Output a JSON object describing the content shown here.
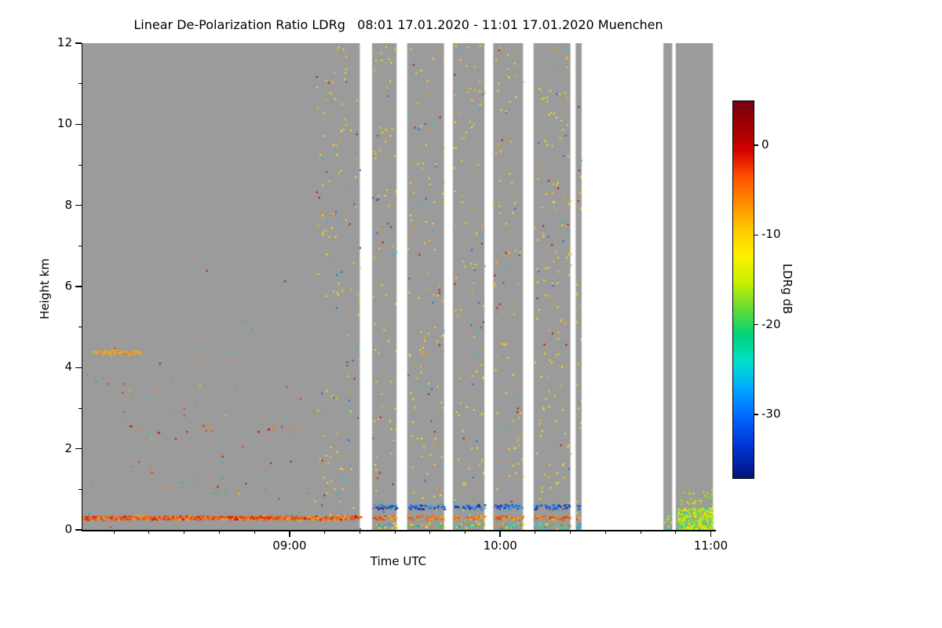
{
  "chart_data": {
    "type": "heatmap",
    "title": "Linear De-Polarization Ratio LDRg   08:01 17.01.2020 - 11:01 17.01.2020 Muenchen",
    "xlabel": "Time UTC",
    "ylabel": "Height km",
    "station": "Muenchen",
    "time_start": "08:01 17.01.2020",
    "time_end": "11:01 17.01.2020",
    "x_total_minutes": 180,
    "x_ticks": [
      {
        "label": "09:00",
        "minute": 59
      },
      {
        "label": "10:00",
        "minute": 119
      },
      {
        "label": "11:00",
        "minute": 179
      }
    ],
    "x_minor_start": 9,
    "x_minor_step": 10,
    "ylim": [
      0,
      12
    ],
    "y_ticks": [
      0,
      2,
      4,
      6,
      8,
      10,
      12
    ],
    "y_minor_step": 1,
    "no_signal_color": "#9b9b9b",
    "gap_color": "#ffffff",
    "coverage_segments_minutes": [
      [
        0,
        79
      ],
      [
        82.5,
        89.5
      ],
      [
        92.5,
        103
      ],
      [
        105.5,
        114.5
      ],
      [
        117,
        125.5
      ],
      [
        128.5,
        139
      ],
      [
        140.5,
        142.2
      ],
      [
        165.5,
        168
      ],
      [
        169,
        179.6
      ]
    ],
    "colorbar": {
      "label": "LDRg dB",
      "vmax": 5,
      "vmin": -37,
      "ticks": [
        0,
        -10,
        -20,
        -30
      ],
      "stops": [
        [
          0.0,
          "#780014"
        ],
        [
          0.07,
          "#a00000"
        ],
        [
          0.13,
          "#d20000"
        ],
        [
          0.2,
          "#ff5000"
        ],
        [
          0.27,
          "#ff8c00"
        ],
        [
          0.34,
          "#ffc800"
        ],
        [
          0.41,
          "#fff000"
        ],
        [
          0.48,
          "#c8f000"
        ],
        [
          0.55,
          "#64dc32"
        ],
        [
          0.62,
          "#00d278"
        ],
        [
          0.69,
          "#00e1c8"
        ],
        [
          0.76,
          "#00aaff"
        ],
        [
          0.84,
          "#0064ff"
        ],
        [
          0.92,
          "#0032d2"
        ],
        [
          1.0,
          "#001478"
        ]
      ]
    },
    "speckle_regions": [
      {
        "name": "sparse-left-aerosol",
        "t_range": [
          0.5,
          66
        ],
        "h_range": [
          0,
          5.2
        ],
        "count": 80,
        "size": 2,
        "colors": [
          "#ff7800",
          "#ff7800",
          "#e83200",
          "#c80000",
          "#ffc800",
          "#00aaff",
          "#00e1c8",
          "#32c832"
        ]
      },
      {
        "name": "sparse-left-upper",
        "t_range": [
          0.5,
          66
        ],
        "h_range": [
          5.2,
          7.4
        ],
        "count": 6,
        "size": 2,
        "colors": [
          "#ff7800",
          "#c80000"
        ]
      },
      {
        "name": "dense-mid-speckle",
        "t_range": [
          66,
          142
        ],
        "h_range": [
          0,
          12
        ],
        "count": 1000,
        "size": 2,
        "colors": [
          "#ffe600",
          "#ffe600",
          "#ffe600",
          "#ffd200",
          "#ffd200",
          "#fff000",
          "#ffb400",
          "#ff8c00",
          "#00c8e1",
          "#0064ff",
          "#c80000",
          "#ffe600"
        ]
      },
      {
        "name": "right-boundary-blob",
        "t_range": [
          169.3,
          179.5
        ],
        "h_range": [
          0,
          0.55
        ],
        "count": 380,
        "size": 2,
        "colors": [
          "#aaf000",
          "#ffe600",
          "#64dc32",
          "#fff000",
          "#00e1c8",
          "#aaf000"
        ]
      },
      {
        "name": "right-blob-fringe",
        "t_range": [
          169.3,
          179.5
        ],
        "h_range": [
          0.55,
          1.0
        ],
        "count": 40,
        "size": 2,
        "colors": [
          "#aaf000",
          "#64dc32",
          "#ffe600"
        ]
      },
      {
        "name": "narrow-column-dots",
        "t_range": [
          165.6,
          167.9
        ],
        "h_range": [
          0,
          0.4
        ],
        "count": 12,
        "size": 2,
        "colors": [
          "#aaf000",
          "#ffe600",
          "#00e1c8"
        ]
      }
    ],
    "line_features": [
      {
        "name": "surface-layer-orange-left",
        "t_range": [
          0,
          79
        ],
        "h_range": [
          0.26,
          0.36
        ],
        "density": 0.95,
        "thickness": 2,
        "colors": [
          "#ff5000",
          "#ff7800",
          "#e83200",
          "#ffb400",
          "#d20000",
          "#ff5000"
        ]
      },
      {
        "name": "surface-layer-orange-right",
        "t_range": [
          79,
          141.5
        ],
        "h_range": [
          0.26,
          0.36
        ],
        "density": 0.6,
        "thickness": 2,
        "colors": [
          "#ff5000",
          "#ff7800",
          "#ffb400",
          "#e83200"
        ]
      },
      {
        "name": "elevated-blue-speckle-line",
        "t_range": [
          82,
          141.5
        ],
        "h_range": [
          0.52,
          0.64
        ],
        "density": 0.5,
        "thickness": 2,
        "colors": [
          "#0032d2",
          "#0064ff",
          "#001e96",
          "#00aaff"
        ]
      },
      {
        "name": "near-surface-speckle-line",
        "t_range": [
          79,
          141.5
        ],
        "h_range": [
          0.06,
          0.18
        ],
        "density": 0.4,
        "thickness": 2,
        "colors": [
          "#00e1c8",
          "#32c832",
          "#ffe600",
          "#00aaff",
          "#ff8c00"
        ]
      },
      {
        "name": "left-midlevel-dash",
        "t_range": [
          3,
          17
        ],
        "h_range": [
          4.32,
          4.46
        ],
        "density": 0.5,
        "thickness": 2,
        "colors": [
          "#ff8c00",
          "#ffb400"
        ]
      },
      {
        "name": "left-2p5km-band",
        "t_range": [
          10,
          62
        ],
        "h_range": [
          2.4,
          2.65
        ],
        "density": 0.05,
        "thickness": 2,
        "colors": [
          "#e83200",
          "#ff7800",
          "#c80000"
        ]
      },
      {
        "name": "left-1km-band",
        "t_range": [
          20,
          60
        ],
        "h_range": [
          0.9,
          1.2
        ],
        "density": 0.04,
        "thickness": 2,
        "colors": [
          "#ff7800",
          "#00aaff",
          "#32c832"
        ]
      }
    ]
  }
}
